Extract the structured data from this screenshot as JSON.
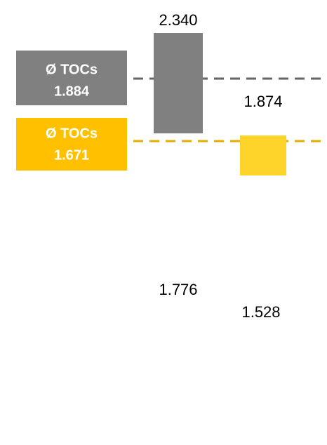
{
  "badges": [
    {
      "title": "Ø TOCs",
      "value": "1.884"
    },
    {
      "title": "Ø TOCs",
      "value": "1.671"
    }
  ],
  "labels": {
    "gray_top": "2.340",
    "yellow_top": "1.874",
    "gray_bottom": "1.776",
    "yellow_bottom": "1.528"
  }
}
